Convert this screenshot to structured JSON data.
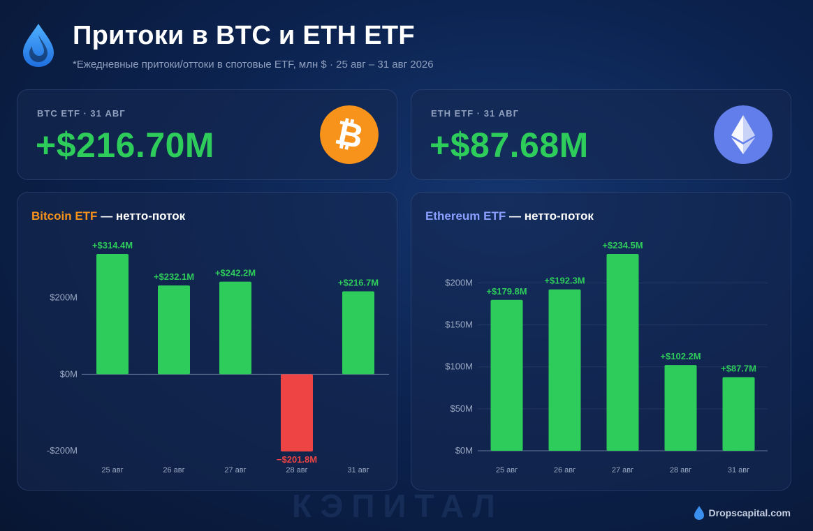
{
  "header": {
    "title": "Притоки в BTC и ETH ETF",
    "subtitle": "*Ежедневные притоки/оттоки в спотовые ETF, млн $ · 25 авг – 31 авг 2026"
  },
  "cards": [
    {
      "label": "BTC ETF · 31 АВГ",
      "value": "+$216.70M",
      "icon": "bitcoin-icon",
      "icon_color": "#f7931a"
    },
    {
      "label": "ETH ETF · 31 АВГ",
      "value": "+$87.68M",
      "icon": "ethereum-icon",
      "icon_color": "#627eea"
    }
  ],
  "colors": {
    "positive": "#2ecc5a",
    "negative": "#ef4444",
    "btc_accent": "#f7931a",
    "eth_accent": "#8c9eff"
  },
  "chart_data": [
    {
      "type": "bar",
      "title_accent": "Bitcoin ETF",
      "title_rest": "— нетто-поток",
      "categories": [
        "25 авг",
        "26 авг",
        "27 авг",
        "28 авг",
        "31 авг"
      ],
      "values": [
        314.4,
        232.1,
        242.2,
        -201.8,
        216.7
      ],
      "labels": [
        "+$314.4M",
        "+$232.1M",
        "+$242.2M",
        "−$201.8M",
        "+$216.7M"
      ],
      "yticks": [
        200,
        0,
        -200
      ],
      "ytick_labels": [
        "$200M",
        "$0M",
        "-$200M"
      ],
      "ylim": [
        -200,
        314.4
      ],
      "grid": false
    },
    {
      "type": "bar",
      "title_accent": "Ethereum ETF",
      "title_rest": "— нетто-поток",
      "categories": [
        "25 авг",
        "26 авг",
        "27 авг",
        "28 авг",
        "31 авг"
      ],
      "values": [
        179.8,
        192.3,
        234.5,
        102.2,
        87.7
      ],
      "labels": [
        "+$179.8M",
        "+$192.3M",
        "+$234.5M",
        "+$102.2M",
        "+$87.7M"
      ],
      "yticks": [
        200,
        150,
        100,
        50,
        0
      ],
      "ytick_labels": [
        "$200M",
        "$150M",
        "$100M",
        "$50M",
        "$0M"
      ],
      "ylim": [
        0,
        234.5
      ],
      "grid": true
    }
  ],
  "watermark": "КЭПИТАЛ",
  "footer": {
    "brand": "Dropscapital.com",
    "icon": "drop-icon"
  }
}
